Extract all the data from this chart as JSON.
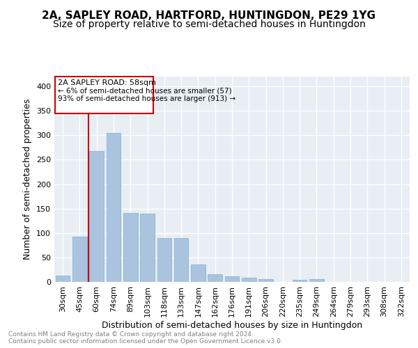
{
  "title1": "2A, SAPLEY ROAD, HARTFORD, HUNTINGDON, PE29 1YG",
  "title2": "Size of property relative to semi-detached houses in Huntingdon",
  "xlabel": "Distribution of semi-detached houses by size in Huntingdon",
  "ylabel": "Number of semi-detached properties",
  "footnote": "Contains HM Land Registry data © Crown copyright and database right 2024.\nContains public sector information licensed under the Open Government Licence v3.0.",
  "categories": [
    "30sqm",
    "45sqm",
    "60sqm",
    "74sqm",
    "89sqm",
    "103sqm",
    "118sqm",
    "133sqm",
    "147sqm",
    "162sqm",
    "176sqm",
    "191sqm",
    "206sqm",
    "220sqm",
    "235sqm",
    "249sqm",
    "264sqm",
    "279sqm",
    "293sqm",
    "308sqm",
    "322sqm"
  ],
  "values": [
    13,
    92,
    267,
    304,
    141,
    140,
    90,
    90,
    35,
    15,
    11,
    8,
    5,
    0,
    4,
    5,
    0,
    0,
    0,
    0,
    0
  ],
  "bar_color": "#aac4e0",
  "bar_edge_color": "#7aaed6",
  "marker_bin": 2,
  "marker_label1": "2A SAPLEY ROAD: 58sqm",
  "marker_label2": "← 6% of semi-detached houses are smaller (57)",
  "marker_label3": "93% of semi-detached houses are larger (913) →",
  "marker_color": "#cc0000",
  "ylim": [
    0,
    420
  ],
  "yticks": [
    0,
    50,
    100,
    150,
    200,
    250,
    300,
    350,
    400
  ],
  "background_color": "#e8eef4",
  "grid_color": "#ffffff",
  "title_fontsize": 11,
  "subtitle_fontsize": 10,
  "axis_label_fontsize": 9,
  "tick_fontsize": 8
}
